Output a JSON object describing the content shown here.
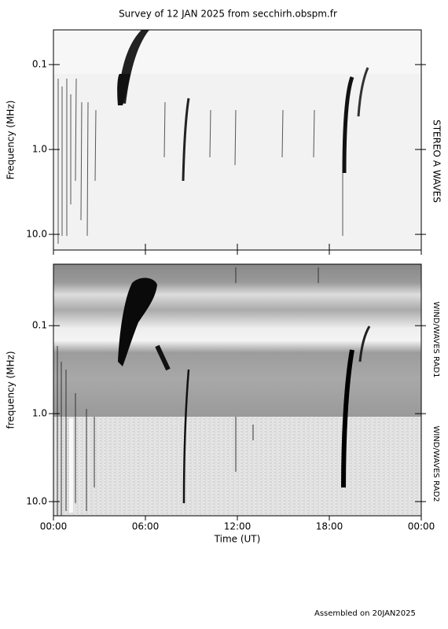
{
  "chart_data": [
    {
      "type": "spectrogram",
      "title": "Survey of 12 JAN 2025 from secchirh.obspm.fr",
      "ylabel": "Frequency (MHz)",
      "side_label": "STEREO A WAVES",
      "y_log": true,
      "y_inverted": true,
      "ylim": [
        0.039,
        15.3
      ],
      "yticks": [
        0.1,
        {
          "value": 1,
          "label": "1.0"
        },
        {
          "value": 10,
          "label": "10.0"
        }
      ],
      "xlim": [
        0,
        24
      ]
    },
    {
      "type": "spectrogram",
      "ylabel": "frequency (MHz)",
      "side_labels": [
        "WIND/WAVES RAD1",
        "WIND/WAVES RAD2"
      ],
      "y_log": true,
      "y_inverted": true,
      "ylim": [
        0.02,
        14.5
      ],
      "yticks": [
        0.1,
        {
          "value": 1,
          "label": "1.0"
        },
        {
          "value": 10,
          "label": "10.0"
        }
      ],
      "xlim": [
        0,
        24
      ],
      "xticks": [
        {
          "value": 0,
          "label": "00:00"
        },
        {
          "value": 6,
          "label": "06:00"
        },
        {
          "value": 12,
          "label": "12:00"
        },
        {
          "value": 18,
          "label": "18:00"
        },
        {
          "value": 24,
          "label": "00:00"
        }
      ],
      "xlabel": "Time (UT)"
    }
  ],
  "footer": "Assembled on 20JAN2025"
}
